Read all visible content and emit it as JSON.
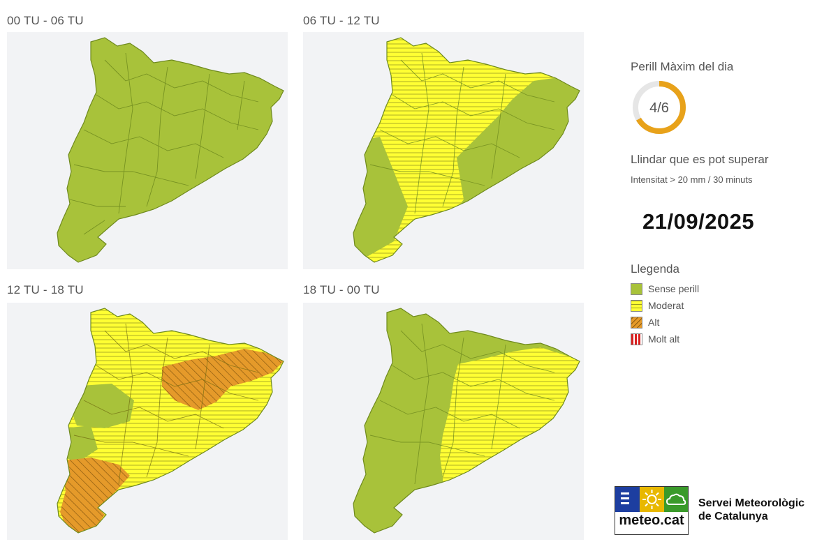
{
  "panels": [
    {
      "title": "00 TU - 06 TU"
    },
    {
      "title": "06 TU - 12 TU"
    },
    {
      "title": "12 TU - 18 TU"
    },
    {
      "title": "18 TU - 00 TU"
    }
  ],
  "sidebar": {
    "max_title": "Perill Màxim del dia",
    "max_value": "4/6",
    "max_level": 4,
    "max_scale": 6,
    "threshold_title": "Llindar que es pot superar",
    "threshold_text": "Intensitat > 20 mm / 30 minuts",
    "date": "21/09/2025"
  },
  "legend": {
    "title": "Llegenda",
    "items": [
      {
        "label": "Sense perill",
        "color": "#a8c23a",
        "pattern": "solid"
      },
      {
        "label": "Moderat",
        "color": "#ffff33",
        "pattern": "horizontal-lines"
      },
      {
        "label": "Alt",
        "color": "#e59a2a",
        "pattern": "diagonal-lines"
      },
      {
        "label": "Molt alt",
        "color": "#d92020",
        "pattern": "vertical-lines"
      }
    ]
  },
  "logo": {
    "text": "meteo.cat",
    "org_line1": "Servei Meteorològic",
    "org_line2": "de Catalunya",
    "colors": {
      "left": "#1d3ea0",
      "middle": "#e8b800",
      "right": "#3a9a2a"
    }
  },
  "colors": {
    "green": "#a8c23a",
    "yellow": "#ffff33",
    "orange": "#e59a2a",
    "gauge": "#e8a21a"
  }
}
